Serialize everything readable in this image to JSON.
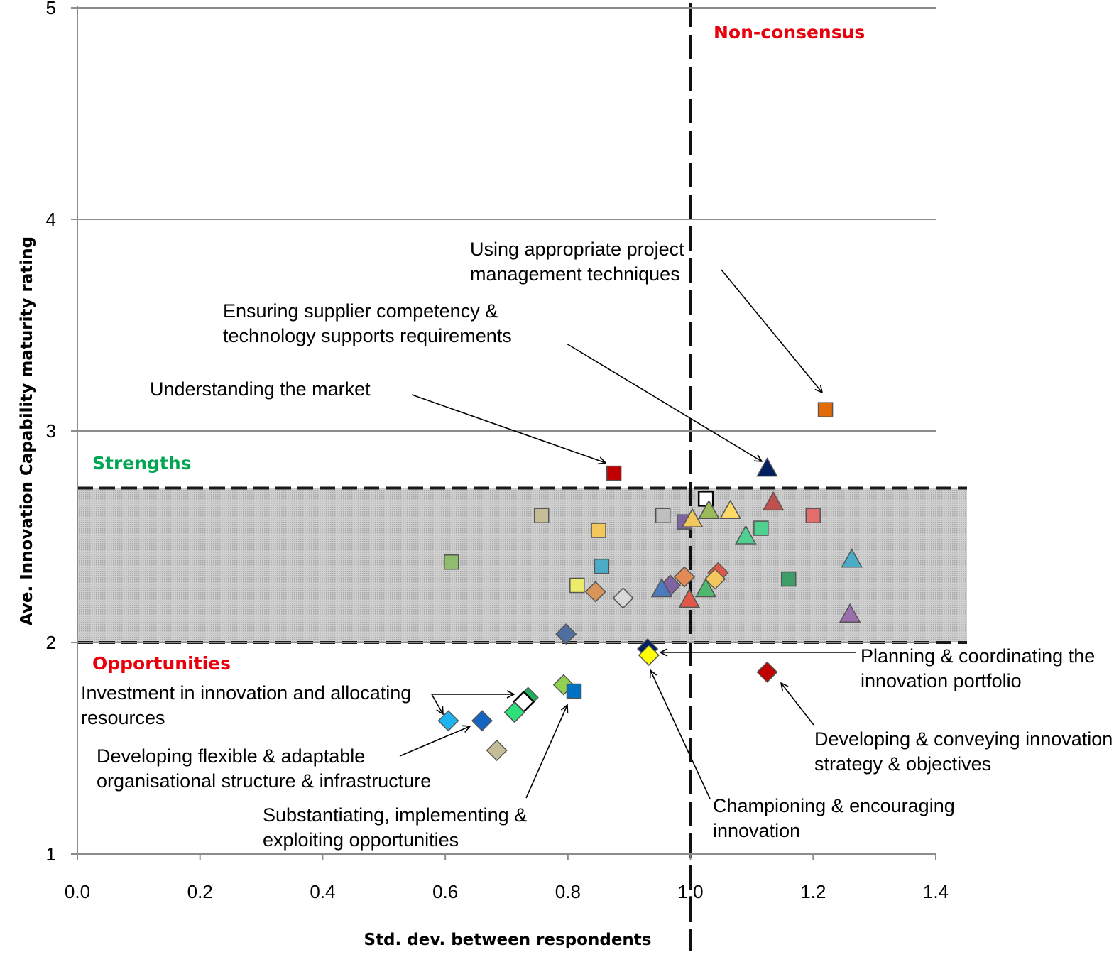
{
  "chart_data": {
    "type": "scatter",
    "title": "",
    "xlabel": "Std. dev. between respondents",
    "ylabel": "Ave. Innovation Capability maturity rating",
    "xlim": [
      0,
      1.4
    ],
    "ylim": [
      1,
      5
    ],
    "x_ticks": [
      "0.0",
      "0.2",
      "0.4",
      "0.6",
      "0.8",
      "1.0",
      "1.2",
      "1.4"
    ],
    "y_ticks": [
      "1",
      "2",
      "3",
      "4",
      "5"
    ],
    "grid": "horizontal",
    "consensus_threshold_x": 1.0,
    "strength_band": [
      2.0,
      2.73
    ],
    "zone_labels": {
      "non_consensus": "Non-consensus",
      "strengths": "Strengths",
      "opportunities": "Opportunities"
    },
    "colors": {
      "non_consensus": "#e8000d",
      "strengths": "#00a651",
      "opportunities": "#e8000d",
      "band_fill": "#c8c8c8",
      "grid": "#8c8c8c"
    },
    "points": [
      {
        "x": 1.22,
        "y": 3.1,
        "shape": "square",
        "color": "#e36c09"
      },
      {
        "x": 0.875,
        "y": 2.8,
        "shape": "square",
        "color": "#c00000"
      },
      {
        "x": 1.125,
        "y": 2.82,
        "shape": "triangle",
        "color": "#002060"
      },
      {
        "x": 1.025,
        "y": 2.68,
        "shape": "square",
        "color": "#ffffff"
      },
      {
        "x": 1.135,
        "y": 2.66,
        "shape": "triangle",
        "color": "#c0504d"
      },
      {
        "x": 0.757,
        "y": 2.6,
        "shape": "square",
        "color": "#c4bd97"
      },
      {
        "x": 0.955,
        "y": 2.6,
        "shape": "square",
        "color": "#bfbfbf"
      },
      {
        "x": 1.2,
        "y": 2.6,
        "shape": "square",
        "color": "#e46c6c"
      },
      {
        "x": 1.03,
        "y": 2.62,
        "shape": "triangle",
        "color": "#9bbb59"
      },
      {
        "x": 1.065,
        "y": 2.62,
        "shape": "triangle",
        "color": "#ffd966"
      },
      {
        "x": 0.99,
        "y": 2.57,
        "shape": "square",
        "color": "#8064a2"
      },
      {
        "x": 1.003,
        "y": 2.58,
        "shape": "triangle",
        "color": "#f2c75c"
      },
      {
        "x": 0.85,
        "y": 2.53,
        "shape": "square",
        "color": "#f2c75c"
      },
      {
        "x": 1.115,
        "y": 2.54,
        "shape": "square",
        "color": "#4fd08e"
      },
      {
        "x": 1.09,
        "y": 2.5,
        "shape": "triangle",
        "color": "#4fd08e"
      },
      {
        "x": 0.61,
        "y": 2.38,
        "shape": "square",
        "color": "#8fbc6d"
      },
      {
        "x": 0.855,
        "y": 2.36,
        "shape": "square",
        "color": "#4aacc6"
      },
      {
        "x": 1.263,
        "y": 2.39,
        "shape": "triangle",
        "color": "#4aacc6"
      },
      {
        "x": 1.16,
        "y": 2.3,
        "shape": "square",
        "color": "#3e9d66"
      },
      {
        "x": 1.045,
        "y": 2.33,
        "shape": "diamond",
        "color": "#e0574a"
      },
      {
        "x": 0.99,
        "y": 2.31,
        "shape": "diamond",
        "color": "#e08a55"
      },
      {
        "x": 1.04,
        "y": 2.3,
        "shape": "diamond",
        "color": "#f2c75c"
      },
      {
        "x": 0.815,
        "y": 2.27,
        "shape": "square",
        "color": "#ecec6a"
      },
      {
        "x": 0.967,
        "y": 2.27,
        "shape": "diamond",
        "color": "#8064a2"
      },
      {
        "x": 0.953,
        "y": 2.25,
        "shape": "triangle",
        "color": "#4b7bbf"
      },
      {
        "x": 1.025,
        "y": 2.25,
        "shape": "triangle",
        "color": "#4fb86f"
      },
      {
        "x": 0.845,
        "y": 2.24,
        "shape": "diamond",
        "color": "#d99459"
      },
      {
        "x": 0.89,
        "y": 2.21,
        "shape": "diamond",
        "color": "#d9d9d9"
      },
      {
        "x": 0.998,
        "y": 2.2,
        "shape": "triangle",
        "color": "#e0574a"
      },
      {
        "x": 1.26,
        "y": 2.13,
        "shape": "triangle",
        "color": "#9b6fae"
      },
      {
        "x": 0.797,
        "y": 2.04,
        "shape": "diamond",
        "color": "#4f6fa0"
      },
      {
        "x": 0.93,
        "y": 1.97,
        "shape": "diamond",
        "color": "#002060"
      },
      {
        "x": 0.932,
        "y": 1.94,
        "shape": "diamond",
        "color": "#ffff00"
      },
      {
        "x": 1.125,
        "y": 1.86,
        "shape": "diamond",
        "color": "#c00000"
      },
      {
        "x": 0.793,
        "y": 1.8,
        "shape": "diamond",
        "color": "#92d050"
      },
      {
        "x": 0.81,
        "y": 1.77,
        "shape": "square",
        "color": "#0070c0"
      },
      {
        "x": 0.735,
        "y": 1.74,
        "shape": "diamond",
        "color": "#1fae5a"
      },
      {
        "x": 0.728,
        "y": 1.72,
        "shape": "diamond",
        "color": "#ffffff"
      },
      {
        "x": 0.713,
        "y": 1.67,
        "shape": "diamond",
        "color": "#2ee07a"
      },
      {
        "x": 0.605,
        "y": 1.63,
        "shape": "diamond",
        "color": "#1fb3f0"
      },
      {
        "x": 0.66,
        "y": 1.63,
        "shape": "diamond",
        "color": "#1565c0"
      },
      {
        "x": 0.684,
        "y": 1.49,
        "shape": "diamond",
        "color": "#c4bd97"
      }
    ],
    "annotations": [
      {
        "lines": [
          "Using appropriate project",
          "management techniques"
        ]
      },
      {
        "lines": [
          "Ensuring supplier competency &",
          "technology supports requirements"
        ]
      },
      {
        "lines": [
          "Understanding the market"
        ]
      },
      {
        "lines": [
          "Planning & coordinating the",
          "innovation portfolio"
        ]
      },
      {
        "lines": [
          "Investment in innovation and allocating",
          "resources"
        ]
      },
      {
        "lines": [
          "Developing & conveying innovation",
          "strategy & objectives"
        ]
      },
      {
        "lines": [
          "Developing flexible & adaptable",
          "organisational structure & infrastructure"
        ]
      },
      {
        "lines": [
          "Substantiating, implementing &",
          "exploiting opportunities"
        ]
      },
      {
        "lines": [
          "Championing & encouraging",
          "innovation"
        ]
      }
    ]
  }
}
